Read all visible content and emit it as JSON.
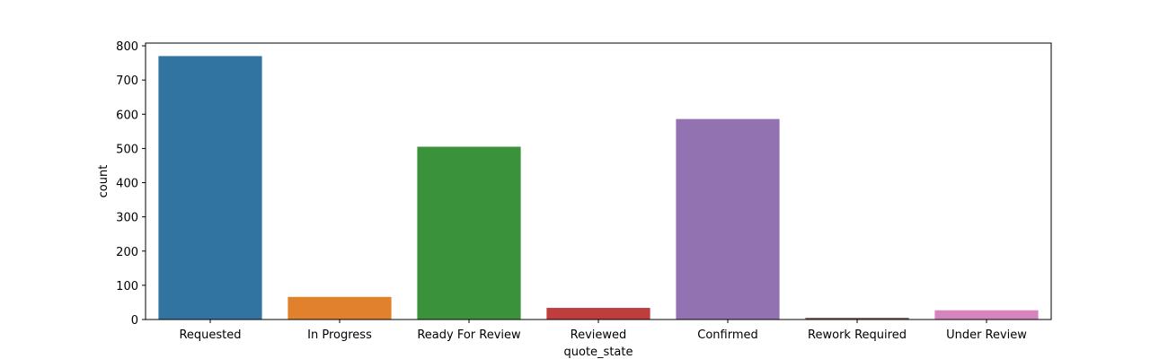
{
  "chart_data": {
    "type": "bar",
    "title": "",
    "xlabel": "quote_state",
    "ylabel": "count",
    "categories": [
      "Requested",
      "In Progress",
      "Ready For Review",
      "Reviewed",
      "Confirmed",
      "Rework Required",
      "Under Review"
    ],
    "values": [
      770,
      66,
      505,
      34,
      586,
      5,
      27
    ],
    "colors": [
      "#3274a1",
      "#e1812c",
      "#3a923a",
      "#c03d3e",
      "#9372b2",
      "#845b53",
      "#d684bd"
    ],
    "ylim": [
      0,
      808
    ],
    "yticks": [
      0,
      100,
      200,
      300,
      400,
      500,
      600,
      700,
      800
    ],
    "grid": false,
    "legend": "none"
  }
}
